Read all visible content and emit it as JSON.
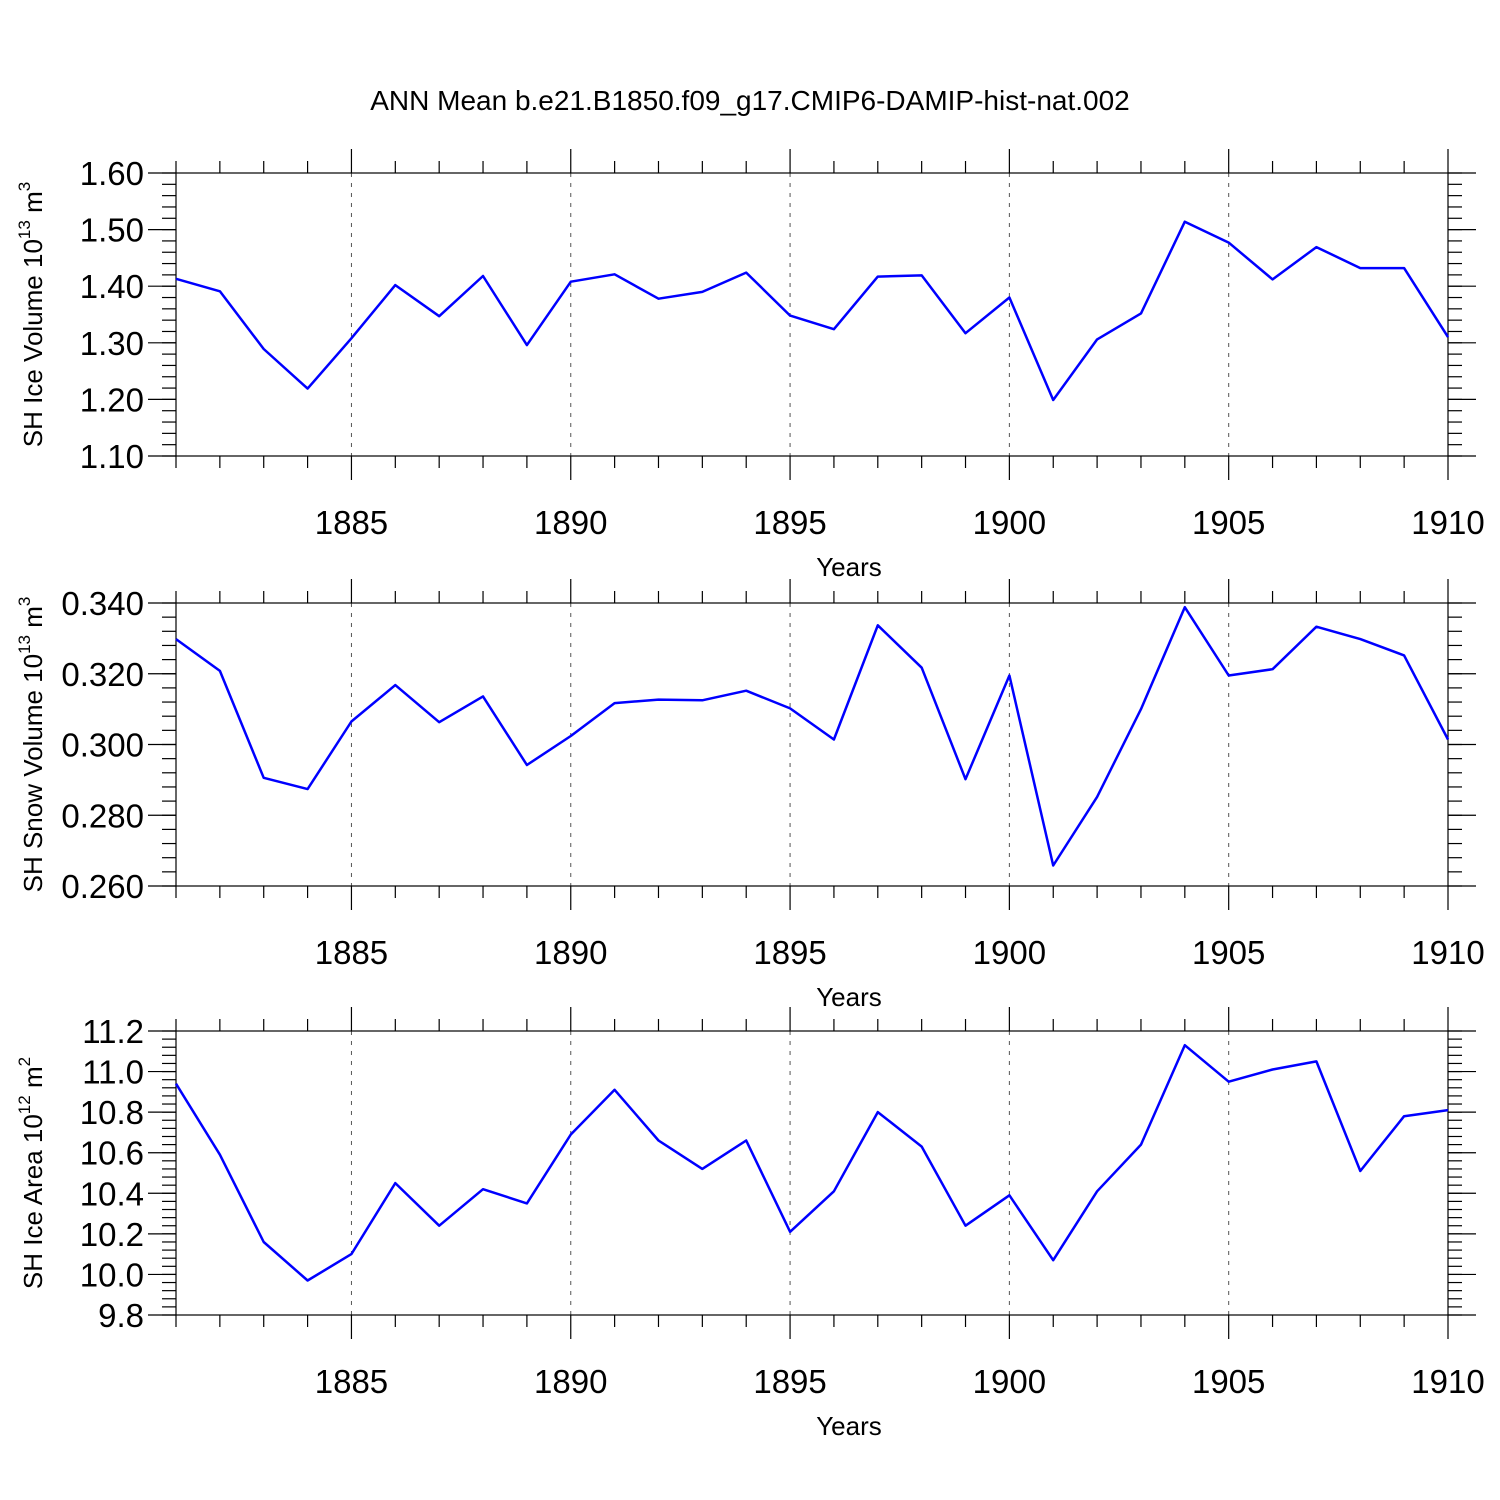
{
  "figure": {
    "title": "ANN Mean b.e21.B1850.f09_g17.CMIP6-DAMIP-hist-nat.002"
  },
  "colors": {
    "line": "#0000ff",
    "axis": "#000000",
    "grid": "#555555"
  },
  "chart_data": [
    {
      "type": "line",
      "title": "",
      "xlabel": "Years",
      "ylabel": "SH Ice Volume 10",
      "ylabel_exp": "13",
      "ylabel_unit": " m",
      "ylabel_unit_exp": "3",
      "xlim": [
        1881,
        1910
      ],
      "ylim": [
        1.1,
        1.6
      ],
      "yticks": [
        1.1,
        1.2,
        1.3,
        1.4,
        1.5,
        1.6
      ],
      "ytick_labels": [
        "1.10",
        "1.20",
        "1.30",
        "1.40",
        "1.50",
        "1.60"
      ],
      "ytick_minor_step": 0.02,
      "xticks": [
        1885,
        1890,
        1895,
        1900,
        1905,
        1910
      ],
      "xtick_labels": [
        "1885",
        "1890",
        "1895",
        "1900",
        "1905",
        "1910"
      ],
      "grid": "vertical dashed at major x ticks",
      "x": [
        1881,
        1882,
        1883,
        1884,
        1885,
        1886,
        1887,
        1888,
        1889,
        1890,
        1891,
        1892,
        1893,
        1894,
        1895,
        1896,
        1897,
        1898,
        1899,
        1900,
        1901,
        1902,
        1903,
        1904,
        1905,
        1906,
        1907,
        1908,
        1909,
        1910
      ],
      "y": [
        1.413,
        1.391,
        1.289,
        1.219,
        1.308,
        1.402,
        1.347,
        1.418,
        1.296,
        1.408,
        1.421,
        1.378,
        1.39,
        1.424,
        1.348,
        1.324,
        1.417,
        1.419,
        1.317,
        1.38,
        1.199,
        1.306,
        1.352,
        1.514,
        1.477,
        1.412,
        1.469,
        1.432,
        1.432,
        1.31
      ]
    },
    {
      "type": "line",
      "title": "",
      "xlabel": "Years",
      "ylabel": "SH Snow Volume 10",
      "ylabel_exp": "13",
      "ylabel_unit": " m",
      "ylabel_unit_exp": "3",
      "xlim": [
        1881,
        1910
      ],
      "ylim": [
        0.26,
        0.34
      ],
      "yticks": [
        0.26,
        0.28,
        0.3,
        0.32,
        0.34
      ],
      "ytick_labels": [
        "0.260",
        "0.280",
        "0.300",
        "0.320",
        "0.340"
      ],
      "ytick_minor_step": 0.004,
      "xticks": [
        1885,
        1890,
        1895,
        1900,
        1905,
        1910
      ],
      "xtick_labels": [
        "1885",
        "1890",
        "1895",
        "1900",
        "1905",
        "1910"
      ],
      "grid": "vertical dashed at major x ticks",
      "x": [
        1881,
        1882,
        1883,
        1884,
        1885,
        1886,
        1887,
        1888,
        1889,
        1890,
        1891,
        1892,
        1893,
        1894,
        1895,
        1896,
        1897,
        1898,
        1899,
        1900,
        1901,
        1902,
        1903,
        1904,
        1905,
        1906,
        1907,
        1908,
        1909,
        1910
      ],
      "y": [
        0.3298,
        0.3208,
        0.2906,
        0.2874,
        0.3065,
        0.3168,
        0.3063,
        0.3136,
        0.2942,
        0.3024,
        0.3117,
        0.3127,
        0.3125,
        0.3152,
        0.3102,
        0.3014,
        0.3337,
        0.3217,
        0.2902,
        0.3195,
        0.2658,
        0.2852,
        0.31,
        0.3388,
        0.3195,
        0.3213,
        0.3333,
        0.3298,
        0.3252,
        0.3014
      ]
    },
    {
      "type": "line",
      "title": "",
      "xlabel": "Years",
      "ylabel": "SH Ice Area 10",
      "ylabel_exp": "12",
      "ylabel_unit": " m",
      "ylabel_unit_exp": "2",
      "xlim": [
        1881,
        1910
      ],
      "ylim": [
        9.8,
        11.2
      ],
      "yticks": [
        9.8,
        10.0,
        10.2,
        10.4,
        10.6,
        10.8,
        11.0,
        11.2
      ],
      "ytick_labels": [
        "9.8",
        "10.0",
        "10.2",
        "10.4",
        "10.6",
        "10.8",
        "11.0",
        "11.2"
      ],
      "ytick_minor_step": 0.04,
      "xticks": [
        1885,
        1890,
        1895,
        1900,
        1905,
        1910
      ],
      "xtick_labels": [
        "1885",
        "1890",
        "1895",
        "1900",
        "1905",
        "1910"
      ],
      "grid": "vertical dashed at major x ticks",
      "x": [
        1881,
        1882,
        1883,
        1884,
        1885,
        1886,
        1887,
        1888,
        1889,
        1890,
        1891,
        1892,
        1893,
        1894,
        1895,
        1896,
        1897,
        1898,
        1899,
        1900,
        1901,
        1902,
        1903,
        1904,
        1905,
        1906,
        1907,
        1908,
        1909,
        1910
      ],
      "y": [
        10.94,
        10.59,
        10.16,
        9.97,
        10.1,
        10.45,
        10.24,
        10.42,
        10.35,
        10.69,
        10.91,
        10.66,
        10.52,
        10.66,
        10.21,
        10.41,
        10.8,
        10.63,
        10.24,
        10.39,
        10.07,
        10.41,
        10.64,
        11.13,
        10.95,
        11.01,
        11.05,
        10.51,
        10.78,
        10.81
      ]
    }
  ]
}
